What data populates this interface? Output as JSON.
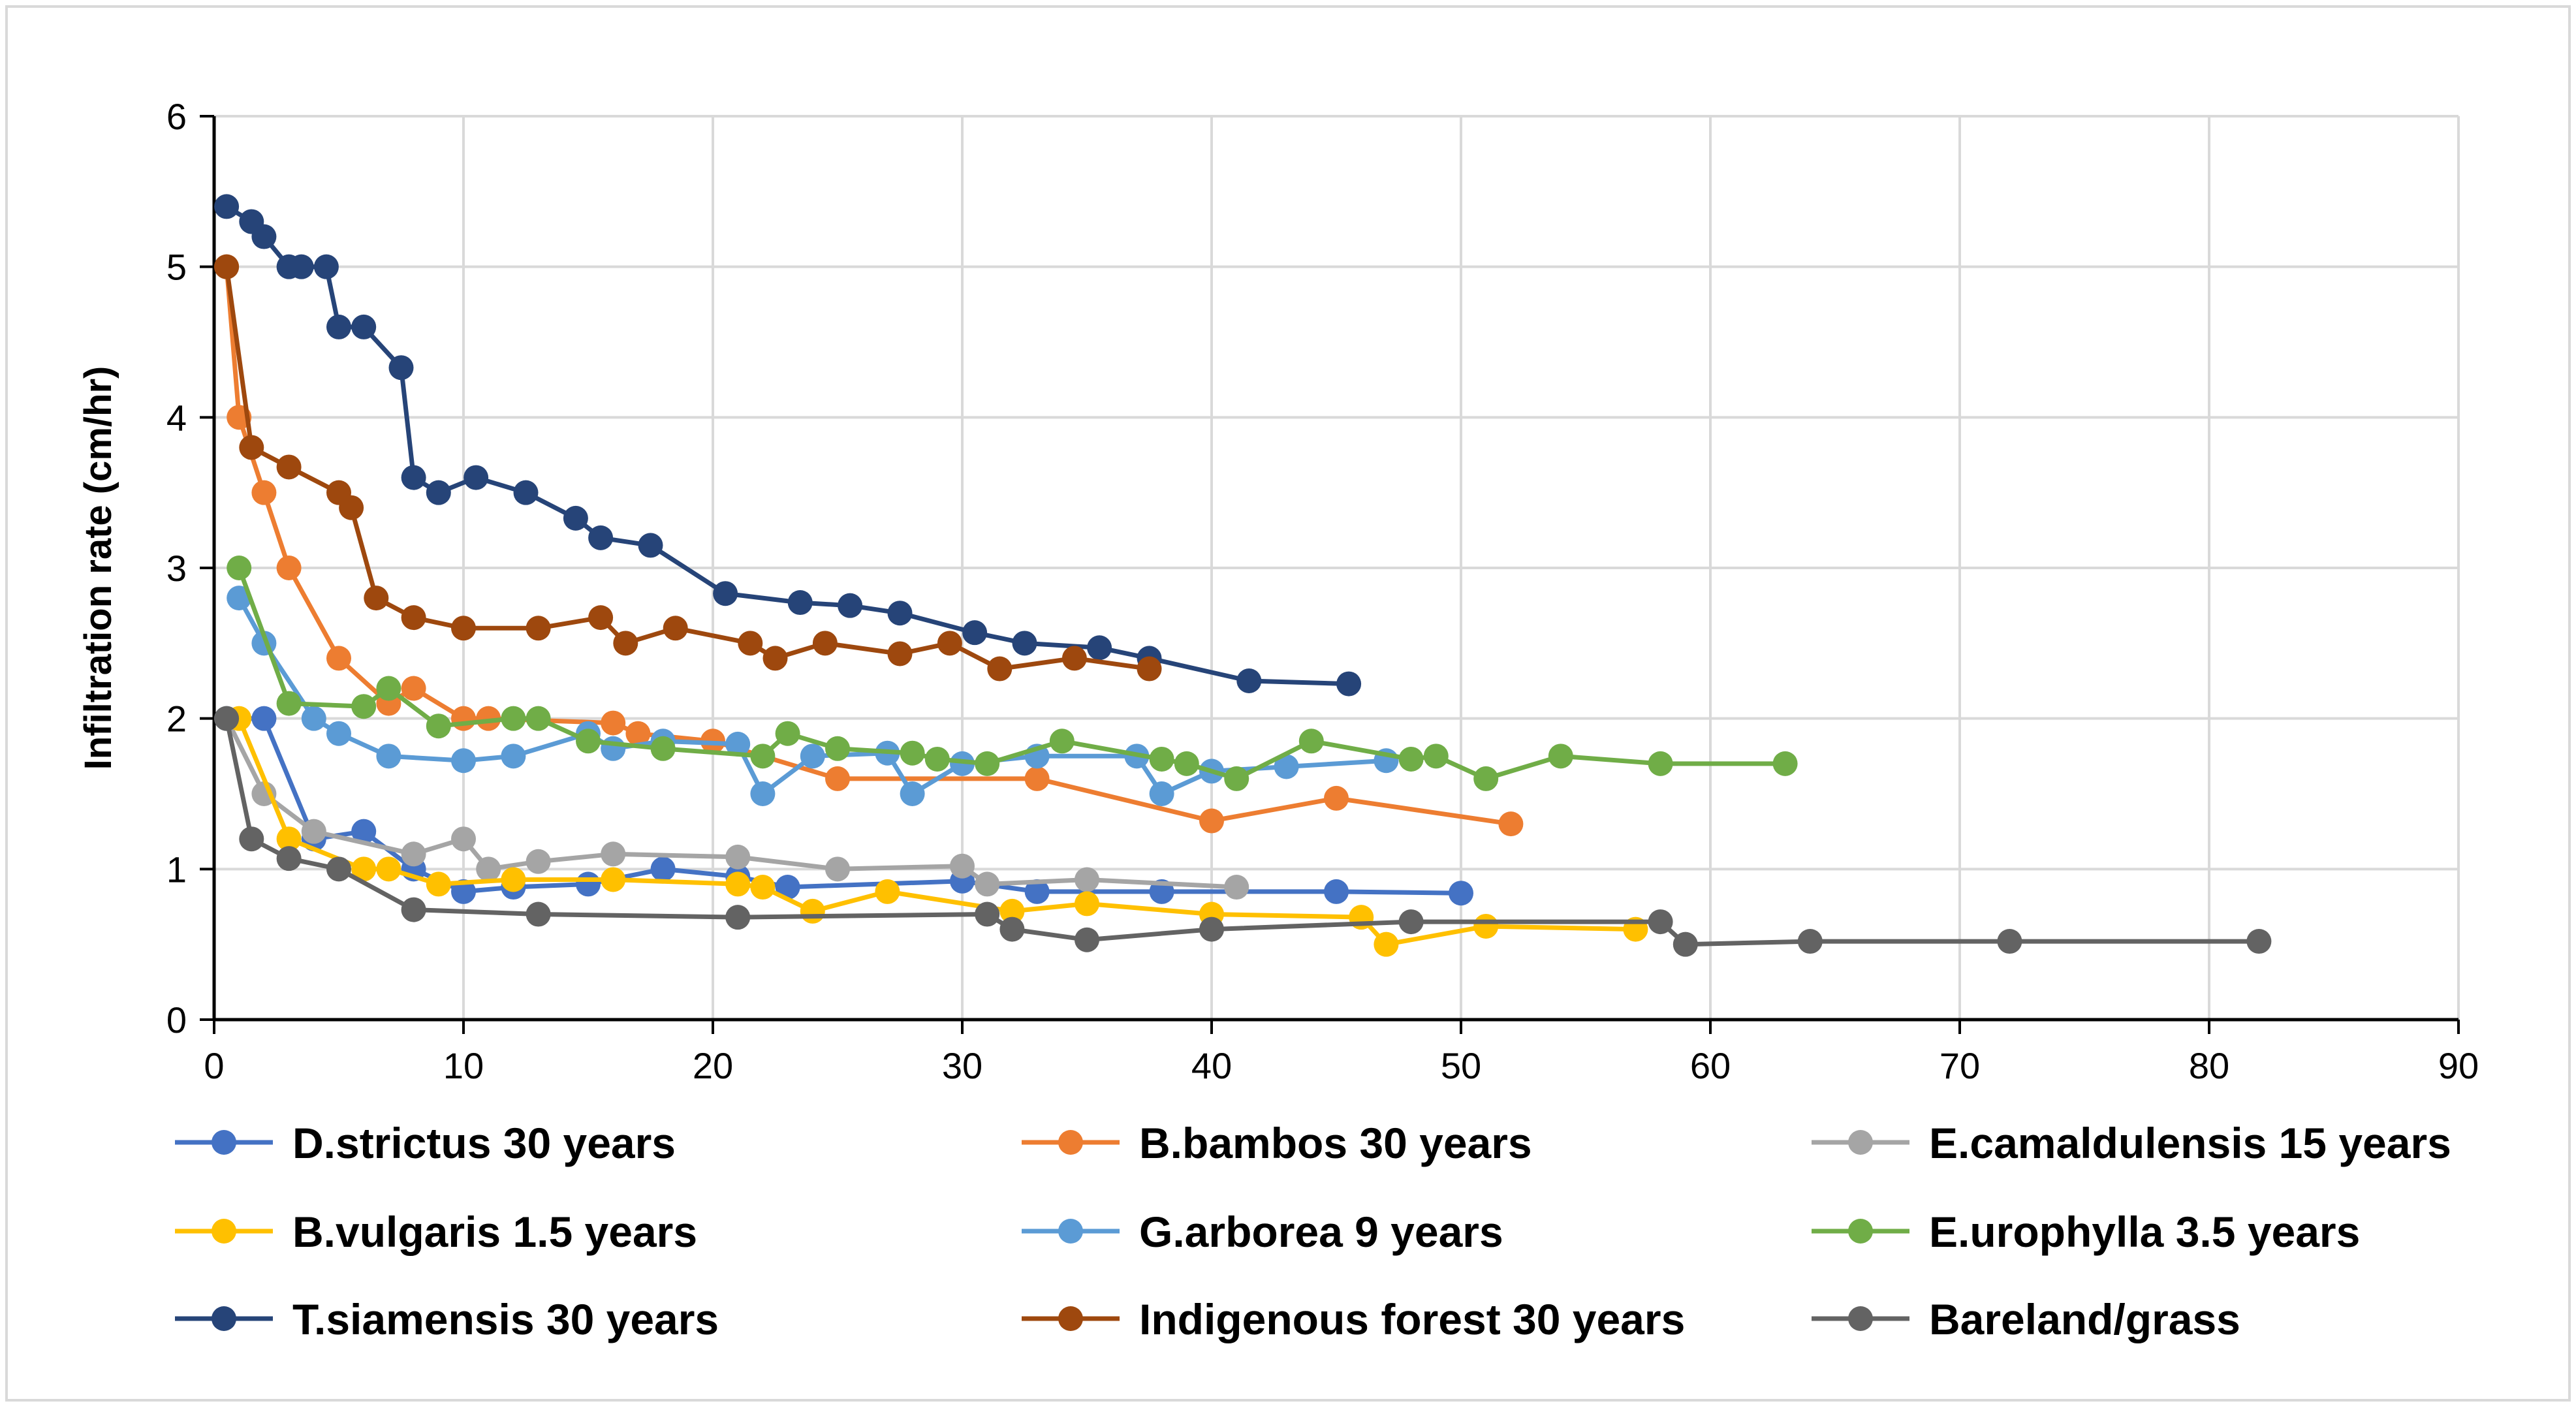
{
  "chart_data": {
    "type": "line",
    "title": "",
    "xlabel": "",
    "ylabel": "Infiltration  rate (cm/hr)",
    "xlim": [
      0,
      90
    ],
    "ylim": [
      0,
      6
    ],
    "xticks": [
      0,
      10,
      20,
      30,
      40,
      50,
      60,
      70,
      80,
      90
    ],
    "yticks": [
      0,
      1,
      2,
      3,
      4,
      5,
      6
    ],
    "grid": true,
    "legend_position": "bottom",
    "series": [
      {
        "name": "D.strictus 30 years",
        "color": "#4472C4",
        "x": [
          0.5,
          2,
          4,
          6,
          8,
          10,
          12,
          15,
          18,
          21,
          23,
          30,
          33,
          38,
          45,
          50
        ],
        "y": [
          2,
          2,
          1.2,
          1.25,
          1,
          0.85,
          0.88,
          0.9,
          1,
          0.95,
          0.88,
          0.92,
          0.85,
          0.85,
          0.85,
          0.84
        ]
      },
      {
        "name": "B.bambos 30 years",
        "color": "#ED7D31",
        "x": [
          0.5,
          1,
          2,
          3,
          5,
          7,
          8,
          10,
          11,
          16,
          17,
          20,
          25,
          33,
          40,
          45,
          52
        ],
        "y": [
          5,
          4,
          3.5,
          3,
          2.4,
          2.1,
          2.2,
          2,
          2,
          1.97,
          1.9,
          1.85,
          1.6,
          1.6,
          1.32,
          1.47,
          1.3
        ]
      },
      {
        "name": "E.camaldulensis 15 years",
        "color": "#A5A5A5",
        "x": [
          0.5,
          2,
          4,
          8,
          10,
          11,
          13,
          16,
          21,
          25,
          30,
          31,
          35,
          41
        ],
        "y": [
          2,
          1.5,
          1.25,
          1.1,
          1.2,
          1,
          1.05,
          1.1,
          1.08,
          1,
          1.02,
          0.9,
          0.93,
          0.88
        ]
      },
      {
        "name": "B.vulgaris 1.5 years",
        "color": "#FFC000",
        "x": [
          1,
          3,
          6,
          7,
          9,
          12,
          16,
          21,
          22,
          24,
          27,
          32,
          35,
          40,
          46,
          47,
          51,
          57
        ],
        "y": [
          2,
          1.2,
          1,
          1,
          0.9,
          0.93,
          0.93,
          0.9,
          0.88,
          0.72,
          0.85,
          0.72,
          0.77,
          0.7,
          0.68,
          0.5,
          0.62,
          0.6
        ]
      },
      {
        "name": "G.arborea 9 years",
        "color": "#5B9BD5",
        "x": [
          1,
          2,
          4,
          5,
          7,
          10,
          12,
          15,
          16,
          18,
          21,
          22,
          24,
          27,
          28,
          30,
          33,
          37,
          38,
          40,
          43,
          47
        ],
        "y": [
          2.8,
          2.5,
          2,
          1.9,
          1.75,
          1.72,
          1.75,
          1.9,
          1.8,
          1.85,
          1.83,
          1.5,
          1.75,
          1.77,
          1.5,
          1.7,
          1.75,
          1.75,
          1.5,
          1.65,
          1.68,
          1.72
        ]
      },
      {
        "name": "E.urophylla 3.5 years",
        "color": "#70AD47",
        "x": [
          1,
          3,
          6,
          7,
          9,
          12,
          13,
          15,
          18,
          22,
          23,
          25,
          28,
          29,
          31,
          34,
          38,
          39,
          41,
          44,
          48,
          49,
          51,
          54,
          58,
          63
        ],
        "y": [
          3,
          2.1,
          2.08,
          2.2,
          1.95,
          2,
          2,
          1.85,
          1.8,
          1.75,
          1.9,
          1.8,
          1.77,
          1.73,
          1.7,
          1.85,
          1.73,
          1.7,
          1.6,
          1.85,
          1.73,
          1.75,
          1.6,
          1.75,
          1.7,
          1.7
        ]
      },
      {
        "name": "T.siamensis 30 years",
        "color": "#264478",
        "x": [
          0.5,
          1.5,
          2,
          3,
          3.5,
          4.5,
          5,
          6,
          7.5,
          8,
          9,
          10.5,
          12.5,
          14.5,
          15.5,
          17.5,
          20.5,
          23.5,
          25.5,
          27.5,
          30.5,
          32.5,
          35.5,
          37.5,
          41.5,
          45.5
        ],
        "y": [
          5.4,
          5.3,
          5.2,
          5,
          5,
          5,
          4.6,
          4.6,
          4.33,
          3.6,
          3.5,
          3.6,
          3.5,
          3.33,
          3.2,
          3.15,
          2.83,
          2.77,
          2.75,
          2.7,
          2.57,
          2.5,
          2.47,
          2.4,
          2.25,
          2.23
        ]
      },
      {
        "name": "Indigenous forest 30 years",
        "color": "#9E480E",
        "x": [
          0.5,
          1.5,
          3,
          5,
          5.5,
          6.5,
          8,
          10,
          13,
          15.5,
          16.5,
          18.5,
          21.5,
          22.5,
          24.5,
          27.5,
          29.5,
          31.5,
          34.5,
          37.5
        ],
        "y": [
          5,
          3.8,
          3.67,
          3.5,
          3.4,
          2.8,
          2.67,
          2.6,
          2.6,
          2.67,
          2.5,
          2.6,
          2.5,
          2.4,
          2.5,
          2.43,
          2.5,
          2.33,
          2.4,
          2.33
        ]
      },
      {
        "name": "Bareland/grass",
        "color": "#636363",
        "x": [
          0.5,
          1.5,
          3,
          5,
          8,
          13,
          21,
          31,
          32,
          35,
          40,
          48,
          58,
          59,
          64,
          72,
          82
        ],
        "y": [
          2,
          1.2,
          1.07,
          1,
          0.73,
          0.7,
          0.68,
          0.7,
          0.6,
          0.53,
          0.6,
          0.65,
          0.65,
          0.5,
          0.52,
          0.52,
          0.52
        ]
      }
    ]
  }
}
